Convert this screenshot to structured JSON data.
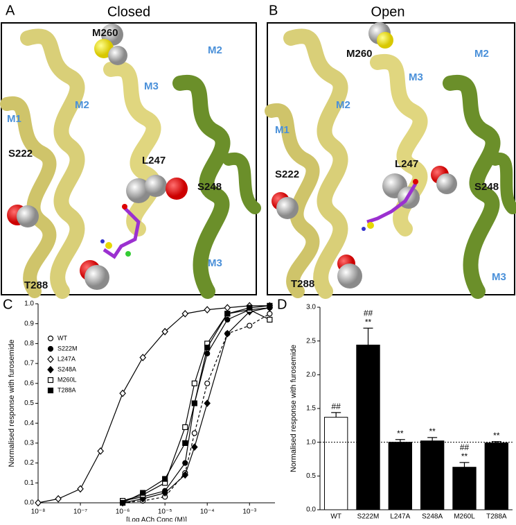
{
  "structures": [
    {
      "letter": "A",
      "title": "Closed",
      "labels": [
        "M260",
        "M3",
        "M2",
        "M2",
        "M1",
        "S222",
        "L247",
        "S248",
        "T288",
        "M3"
      ]
    },
    {
      "letter": "B",
      "title": "Open",
      "labels": [
        "M260",
        "M3",
        "M2",
        "M2",
        "M1",
        "S222",
        "L247",
        "S248",
        "T288",
        "M3"
      ]
    }
  ],
  "chart_data": [
    {
      "type": "line",
      "letter": "C",
      "ylabel": "Normalised response with furosemide",
      "xlabel": "[Log ACh Conc (M)]",
      "xscale": "log",
      "xlim": [
        1e-08,
        0.004
      ],
      "xticks": [
        {
          "value": 1e-08,
          "label": "10⁻⁸"
        },
        {
          "value": 1e-07,
          "label": "10⁻⁷"
        },
        {
          "value": 1e-06,
          "label": "10⁻⁶"
        },
        {
          "value": 1e-05,
          "label": "10⁻⁵"
        },
        {
          "value": 0.0001,
          "label": "10⁻⁴"
        },
        {
          "value": 0.001,
          "label": "10⁻³"
        }
      ],
      "ylim": [
        0,
        1.0
      ],
      "yticks": [
        {
          "value": 0,
          "label": "0.0"
        },
        0.1,
        0.2,
        0.3,
        0.4,
        0.5,
        0.6,
        0.7,
        0.8,
        0.9,
        {
          "value": 1,
          "label": "1.0"
        }
      ],
      "hline": 0,
      "legend": "upper left",
      "series": [
        {
          "name": "WT",
          "marker": "circle-open",
          "dash": true,
          "color": "#000000",
          "x": [
            1e-06,
            3e-06,
            1e-05,
            3e-05,
            5e-05,
            0.0001,
            0.0003,
            0.001,
            0.003
          ],
          "values": [
            0.0,
            0.01,
            0.03,
            0.15,
            0.35,
            0.6,
            0.85,
            0.89,
            0.95
          ]
        },
        {
          "name": "S222M",
          "marker": "circle-filled",
          "dash": false,
          "color": "#000000",
          "x": [
            1e-06,
            3e-06,
            1e-05,
            3e-05,
            5e-05,
            0.0001,
            0.0003,
            0.001,
            0.003
          ],
          "values": [
            0.01,
            0.03,
            0.06,
            0.2,
            0.5,
            0.75,
            0.92,
            0.97,
            0.98
          ]
        },
        {
          "name": "L247A",
          "marker": "diamond-open",
          "dash": false,
          "color": "#000000",
          "x": [
            1e-08,
            3e-08,
            1e-07,
            3e-07,
            1e-06,
            3e-06,
            1e-05,
            3e-05,
            0.0001,
            0.0003,
            0.001,
            0.003
          ],
          "values": [
            0.0,
            0.02,
            0.07,
            0.26,
            0.55,
            0.73,
            0.86,
            0.95,
            0.97,
            0.98,
            0.99,
            0.99
          ]
        },
        {
          "name": "S248A",
          "marker": "diamond-filled",
          "dash": false,
          "color": "#000000",
          "x": [
            1e-06,
            3e-06,
            1e-05,
            3e-05,
            5e-05,
            0.0001,
            0.0003,
            0.001,
            0.003
          ],
          "values": [
            0.0,
            0.02,
            0.05,
            0.14,
            0.28,
            0.5,
            0.85,
            0.96,
            0.98
          ]
        },
        {
          "name": "M260L",
          "marker": "square-open",
          "dash": false,
          "color": "#000000",
          "x": [
            1e-06,
            3e-06,
            1e-05,
            3e-05,
            5e-05,
            0.0001,
            0.0003,
            0.001,
            0.003
          ],
          "values": [
            0.01,
            0.04,
            0.1,
            0.38,
            0.6,
            0.8,
            0.95,
            0.97,
            0.92
          ]
        },
        {
          "name": "T288A",
          "marker": "square-filled",
          "dash": false,
          "color": "#000000",
          "x": [
            1e-06,
            3e-06,
            1e-05,
            3e-05,
            5e-05,
            0.0001,
            0.0003,
            0.001,
            0.003
          ],
          "values": [
            0.0,
            0.05,
            0.12,
            0.3,
            0.5,
            0.78,
            0.95,
            0.98,
            0.99
          ]
        }
      ]
    },
    {
      "type": "bar",
      "letter": "D",
      "ylabel": "Normalised response with furosemide",
      "categories": [
        "WT",
        "S222M",
        "L247A",
        "S248A",
        "M260L",
        "T288A"
      ],
      "values": [
        1.37,
        2.44,
        1.0,
        1.02,
        0.63,
        0.99
      ],
      "errors": [
        0.07,
        0.25,
        0.04,
        0.05,
        0.07,
        0.02
      ],
      "colors": [
        "#ffffff",
        "#000000",
        "#000000",
        "#000000",
        "#000000",
        "#000000"
      ],
      "significance": [
        [
          "##"
        ],
        [
          "##",
          "**"
        ],
        [
          "**"
        ],
        [
          "**"
        ],
        [
          "##",
          "**"
        ],
        [
          "**"
        ]
      ],
      "ylim": [
        0,
        3.0
      ],
      "yticks": [
        {
          "value": 0,
          "label": "0.0"
        },
        0.5,
        {
          "value": 1,
          "label": "1.0"
        },
        1.5,
        {
          "value": 2,
          "label": "2.0"
        },
        2.5,
        {
          "value": 3,
          "label": "3.0"
        }
      ],
      "hline": 1
    }
  ]
}
